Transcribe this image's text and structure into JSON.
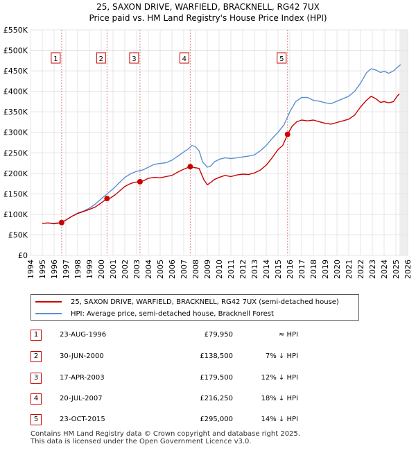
{
  "header": {
    "title_line1": "25, SAXON DRIVE, WARFIELD, BRACKNELL, RG42 7UX",
    "title_line2": "Price paid vs. HM Land Registry's House Price Index (HPI)"
  },
  "chart_data": {
    "type": "line",
    "title": "25, SAXON DRIVE, WARFIELD, BRACKNELL, RG42 7UX",
    "subtitle": "Price paid vs. HM Land Registry's House Price Index (HPI)",
    "xlabel": "",
    "ylabel": "",
    "xlim": [
      1994,
      2026
    ],
    "ylim": [
      0,
      550000
    ],
    "ytick_values": [
      0,
      50000,
      100000,
      150000,
      200000,
      250000,
      300000,
      350000,
      400000,
      450000,
      500000,
      550000
    ],
    "ytick_labels": [
      "£0",
      "£50K",
      "£100K",
      "£150K",
      "£200K",
      "£250K",
      "£300K",
      "£350K",
      "£400K",
      "£450K",
      "£500K",
      "£550K"
    ],
    "xtick_values": [
      1994,
      1995,
      1996,
      1997,
      1998,
      1999,
      2000,
      2001,
      2002,
      2003,
      2004,
      2005,
      2006,
      2007,
      2008,
      2009,
      2010,
      2011,
      2012,
      2013,
      2014,
      2015,
      2016,
      2017,
      2018,
      2019,
      2020,
      2021,
      2022,
      2023,
      2024,
      2025,
      2026
    ],
    "xtick_labels": [
      "1994",
      "1995",
      "1996",
      "1997",
      "1998",
      "1999",
      "2000",
      "2001",
      "2002",
      "2003",
      "2004",
      "2005",
      "2006",
      "2007",
      "2008",
      "2009",
      "2010",
      "2011",
      "2012",
      "2013",
      "2014",
      "2015",
      "2016",
      "2017",
      "2018",
      "2019",
      "2020",
      "2021",
      "2022",
      "2023",
      "2024",
      "2025",
      "2026"
    ],
    "grid": true,
    "legend_position": "bottom",
    "series": [
      {
        "name": "25, SAXON DRIVE, WARFIELD, BRACKNELL, RG42 7UX (semi-detached house)",
        "color": "#cc0000",
        "x": [
          1995.0,
          1995.5,
          1996.0,
          1996.4,
          1996.64,
          1997.0,
          1997.5,
          1998.0,
          1998.5,
          1999.0,
          1999.5,
          2000.0,
          2000.49,
          2000.8,
          2001.2,
          2001.6,
          2002.0,
          2002.4,
          2002.8,
          2003.29,
          2003.6,
          2004.0,
          2004.5,
          2005.0,
          2005.5,
          2006.0,
          2006.5,
          2007.0,
          2007.55,
          2007.9,
          2008.3,
          2008.7,
          2009.0,
          2009.3,
          2009.6,
          2010.0,
          2010.5,
          2011.0,
          2011.5,
          2012.0,
          2012.5,
          2013.0,
          2013.5,
          2014.0,
          2014.5,
          2015.0,
          2015.4,
          2015.81,
          2016.2,
          2016.6,
          2017.0,
          2017.5,
          2018.0,
          2018.5,
          2019.0,
          2019.5,
          2020.0,
          2020.5,
          2021.0,
          2021.5,
          2022.0,
          2022.5,
          2022.9,
          2023.3,
          2023.7,
          2024.0,
          2024.4,
          2024.8,
          2025.1,
          2025.3
        ],
        "values": [
          78000,
          79000,
          77000,
          78500,
          79950,
          86000,
          95000,
          102000,
          107000,
          112000,
          118000,
          128000,
          138500,
          140000,
          148000,
          158000,
          168000,
          174000,
          178000,
          179500,
          182000,
          188000,
          190000,
          189000,
          192000,
          195000,
          203000,
          210000,
          216250,
          214000,
          212000,
          185000,
          172000,
          178000,
          185000,
          190000,
          195000,
          192000,
          196000,
          198000,
          197000,
          201000,
          208000,
          220000,
          238000,
          258000,
          268000,
          295000,
          315000,
          326000,
          330000,
          328000,
          330000,
          326000,
          322000,
          320000,
          324000,
          328000,
          332000,
          342000,
          362000,
          378000,
          388000,
          382000,
          373000,
          375000,
          372000,
          375000,
          388000,
          394000
        ]
      },
      {
        "name": "HPI: Average price, semi-detached house, Bracknell Forest",
        "color": "#5b8fd0",
        "x": [
          1995.0,
          1995.5,
          1996.0,
          1996.5,
          1997.0,
          1997.5,
          1998.0,
          1998.5,
          1999.0,
          1999.5,
          2000.0,
          2000.5,
          2001.0,
          2001.5,
          2002.0,
          2002.5,
          2003.0,
          2003.5,
          2004.0,
          2004.5,
          2005.0,
          2005.5,
          2006.0,
          2006.5,
          2007.0,
          2007.4,
          2007.7,
          2008.0,
          2008.3,
          2008.6,
          2009.0,
          2009.3,
          2009.6,
          2010.0,
          2010.5,
          2011.0,
          2011.5,
          2012.0,
          2012.5,
          2013.0,
          2013.5,
          2014.0,
          2014.5,
          2015.0,
          2015.5,
          2016.0,
          2016.5,
          2017.0,
          2017.5,
          2018.0,
          2018.5,
          2019.0,
          2019.5,
          2020.0,
          2020.5,
          2021.0,
          2021.5,
          2022.0,
          2022.5,
          2022.9,
          2023.3,
          2023.7,
          2024.0,
          2024.4,
          2024.8,
          2025.1,
          2025.4
        ],
        "values": [
          78000,
          79000,
          78000,
          80000,
          86000,
          95000,
          103000,
          108000,
          115000,
          125000,
          138000,
          150000,
          162000,
          176000,
          190000,
          199000,
          205000,
          208000,
          215000,
          222000,
          224000,
          226000,
          232000,
          242000,
          252000,
          260000,
          268000,
          265000,
          255000,
          228000,
          215000,
          218000,
          228000,
          234000,
          238000,
          236000,
          238000,
          240000,
          242000,
          245000,
          255000,
          268000,
          285000,
          300000,
          318000,
          350000,
          375000,
          385000,
          385000,
          378000,
          376000,
          372000,
          370000,
          376000,
          382000,
          388000,
          400000,
          420000,
          445000,
          455000,
          452000,
          446000,
          449000,
          444000,
          450000,
          458000,
          465000
        ]
      }
    ],
    "sales": [
      {
        "marker": "1",
        "x": 1996.64,
        "price": 79950,
        "date": "23-AUG-1996",
        "price_label": "£79,950",
        "hpi_diff": "≈ HPI"
      },
      {
        "marker": "2",
        "x": 2000.49,
        "price": 138500,
        "date": "30-JUN-2000",
        "price_label": "£138,500",
        "hpi_diff": "7% ↓ HPI"
      },
      {
        "marker": "3",
        "x": 2003.29,
        "price": 179500,
        "date": "17-APR-2003",
        "price_label": "£179,500",
        "hpi_diff": "12% ↓ HPI"
      },
      {
        "marker": "4",
        "x": 2007.55,
        "price": 216250,
        "date": "20-JUL-2007",
        "price_label": "£216,250",
        "hpi_diff": "18% ↓ HPI"
      },
      {
        "marker": "5",
        "x": 2015.81,
        "price": 295000,
        "date": "23-OCT-2015",
        "price_label": "£295,000",
        "hpi_diff": "14% ↓ HPI"
      }
    ]
  },
  "legend": {
    "red_label": "25, SAXON DRIVE, WARFIELD, BRACKNELL, RG42 7UX (semi-detached house)",
    "blue_label": "HPI: Average price, semi-detached house, Bracknell Forest"
  },
  "colors": {
    "price": "#cc0000",
    "hpi": "#5b8fd0",
    "grid": "#e4e4e4",
    "plot_bg": "#ffffff"
  },
  "footer": {
    "line1": "Contains HM Land Registry data © Crown copyright and database right 2025.",
    "line2": "This data is licensed under the Open Government Licence v3.0."
  }
}
